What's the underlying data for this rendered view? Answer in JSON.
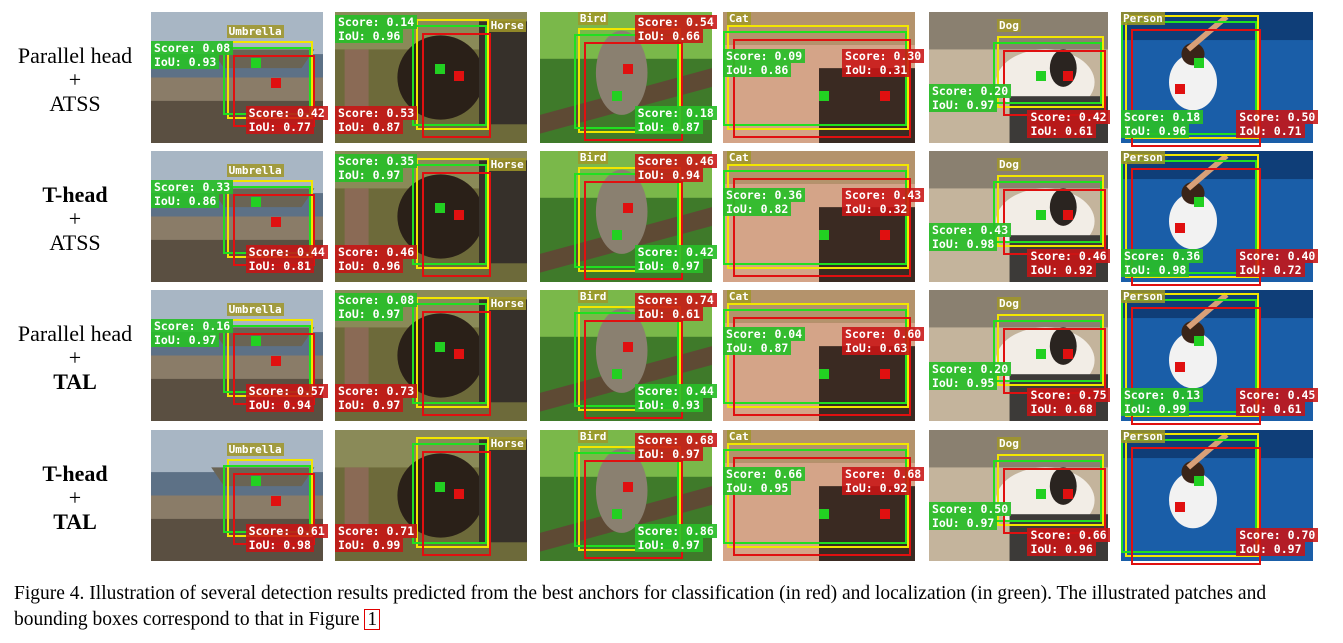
{
  "rows": [
    {
      "label_lines": [
        {
          "text": "Parallel head",
          "bold": false
        },
        {
          "text": "+",
          "bold": false
        },
        {
          "text": "ATSS",
          "bold": false
        }
      ]
    },
    {
      "label_lines": [
        {
          "text": "T-head",
          "bold": true
        },
        {
          "text": "+",
          "bold": false
        },
        {
          "text": "ATSS",
          "bold": false
        }
      ]
    },
    {
      "label_lines": [
        {
          "text": "Parallel head",
          "bold": false
        },
        {
          "text": "+",
          "bold": false
        },
        {
          "text": "TAL",
          "bold": true
        }
      ]
    },
    {
      "label_lines": [
        {
          "text": "T-head",
          "bold": true
        },
        {
          "text": "+",
          "bold": false
        },
        {
          "text": "TAL",
          "bold": true
        }
      ]
    }
  ],
  "columns": [
    {
      "class": "Umbrella",
      "scene": "beach"
    },
    {
      "class": "Horse",
      "scene": "horse"
    },
    {
      "class": "Bird",
      "scene": "bird"
    },
    {
      "class": "Cat",
      "scene": "cat"
    },
    {
      "class": "Dog",
      "scene": "dog"
    },
    {
      "class": "Person",
      "scene": "tennis"
    }
  ],
  "metrics": [
    [
      {
        "green": [
          "Score: 0.08",
          "IoU: 0.93"
        ],
        "red": [
          "Score: 0.42",
          "IoU: 0.77"
        ]
      },
      {
        "green": [
          "Score: 0.14",
          "IoU: 0.96"
        ],
        "red": [
          "Score: 0.53",
          "IoU: 0.87"
        ]
      },
      {
        "green": [
          "Score: 0.18",
          "IoU: 0.87"
        ],
        "red": [
          "Score: 0.54",
          "IoU: 0.66"
        ]
      },
      {
        "green": [
          "Score: 0.09",
          "IoU: 0.86"
        ],
        "red": [
          "Score: 0.30",
          "IoU: 0.31"
        ]
      },
      {
        "green": [
          "Score: 0.20",
          "IoU: 0.97"
        ],
        "red": [
          "Score: 0.42",
          "IoU: 0.61"
        ]
      },
      {
        "green": [
          "Score: 0.18",
          "IoU: 0.96"
        ],
        "red": [
          "Score: 0.50",
          "IoU: 0.71"
        ]
      }
    ],
    [
      {
        "green": [
          "Score: 0.33",
          "IoU: 0.86"
        ],
        "red": [
          "Score: 0.44",
          "IoU: 0.81"
        ]
      },
      {
        "green": [
          "Score: 0.35",
          "IoU: 0.97"
        ],
        "red": [
          "Score: 0.46",
          "IoU: 0.96"
        ]
      },
      {
        "green": [
          "Score: 0.42",
          "IoU: 0.97"
        ],
        "red": [
          "Score: 0.46",
          "IoU: 0.94"
        ]
      },
      {
        "green": [
          "Score: 0.36",
          "IoU: 0.82"
        ],
        "red": [
          "Score: 0.43",
          "IoU: 0.32"
        ]
      },
      {
        "green": [
          "Score: 0.43",
          "IoU: 0.98"
        ],
        "red": [
          "Score: 0.46",
          "IoU: 0.92"
        ]
      },
      {
        "green": [
          "Score: 0.36",
          "IoU: 0.98"
        ],
        "red": [
          "Score: 0.40",
          "IoU: 0.72"
        ]
      }
    ],
    [
      {
        "green": [
          "Score: 0.16",
          "IoU: 0.97"
        ],
        "red": [
          "Score: 0.57",
          "IoU: 0.94"
        ]
      },
      {
        "green": [
          "Score: 0.08",
          "IoU: 0.97"
        ],
        "red": [
          "Score: 0.73",
          "IoU: 0.97"
        ]
      },
      {
        "green": [
          "Score: 0.44",
          "IoU: 0.93"
        ],
        "red": [
          "Score: 0.74",
          "IoU: 0.61"
        ]
      },
      {
        "green": [
          "Score: 0.04",
          "IoU: 0.87"
        ],
        "red": [
          "Score: 0.60",
          "IoU: 0.63"
        ]
      },
      {
        "green": [
          "Score: 0.20",
          "IoU: 0.95"
        ],
        "red": [
          "Score: 0.75",
          "IoU: 0.68"
        ]
      },
      {
        "green": [
          "Score: 0.13",
          "IoU: 0.99"
        ],
        "red": [
          "Score: 0.45",
          "IoU: 0.61"
        ]
      }
    ],
    [
      {
        "green": null,
        "red": [
          "Score: 0.61",
          "IoU: 0.98"
        ]
      },
      {
        "green": null,
        "red": [
          "Score: 0.71",
          "IoU: 0.99"
        ]
      },
      {
        "green": [
          "Score: 0.86",
          "IoU: 0.97"
        ],
        "red": [
          "Score: 0.68",
          "IoU: 0.97"
        ]
      },
      {
        "green": [
          "Score: 0.66",
          "IoU: 0.95"
        ],
        "red": [
          "Score: 0.68",
          "IoU: 0.92"
        ]
      },
      {
        "green": [
          "Score: 0.50",
          "IoU: 0.97"
        ],
        "red": [
          "Score: 0.66",
          "IoU: 0.96"
        ]
      },
      {
        "green": null,
        "red": [
          "Score: 0.70",
          "IoU: 0.97"
        ]
      }
    ]
  ],
  "caption": {
    "text": "Figure 4. Illustration of several detection results predicted from the best anchors for classification (in red) and localization (in green). The illustrated patches and bounding boxes correspond to that in Figure ",
    "ref": "1"
  },
  "colors": {
    "cls_anchor": "#e01010",
    "loc_anchor": "#22d022",
    "gt_box": "#f2e600"
  }
}
